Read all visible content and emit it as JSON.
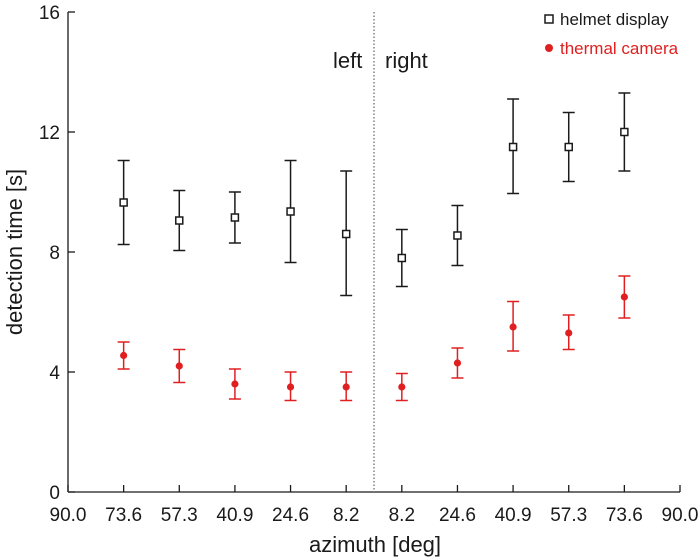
{
  "chart_data": {
    "type": "scatter",
    "title": "",
    "xlabel": "azimuth [deg]",
    "ylabel": "detection time [s]",
    "ylim": [
      0,
      16
    ],
    "yticks": [
      "0",
      "4",
      "8",
      "12",
      "16"
    ],
    "x_tick_labels": [
      "90.0",
      "73.6",
      "57.3",
      "40.9",
      "24.6",
      "8.2",
      "8.2",
      "24.6",
      "40.9",
      "57.3",
      "73.6",
      "90.0"
    ],
    "side_labels": {
      "left": "left",
      "right": "right"
    },
    "grid": false,
    "legend_position": "top-right",
    "series": [
      {
        "name": "helmet display",
        "marker": "open-square",
        "color": "#1a1a1a",
        "values": [
          9.65,
          9.05,
          9.15,
          9.35,
          8.6,
          7.8,
          8.55,
          11.5,
          11.5,
          12.0
        ],
        "err_low": [
          8.25,
          8.05,
          8.3,
          7.65,
          6.55,
          6.85,
          7.55,
          9.95,
          10.35,
          10.7
        ],
        "err_high": [
          11.05,
          10.05,
          10.0,
          11.05,
          10.7,
          8.75,
          9.55,
          13.1,
          12.65,
          13.3
        ]
      },
      {
        "name": "thermal camera",
        "marker": "filled-circle",
        "color": "#e02020",
        "values": [
          4.55,
          4.2,
          3.6,
          3.5,
          3.5,
          3.5,
          4.3,
          5.5,
          5.3,
          6.5
        ],
        "err_low": [
          4.1,
          3.65,
          3.1,
          3.05,
          3.05,
          3.05,
          3.8,
          4.7,
          4.75,
          5.8
        ],
        "err_high": [
          5.0,
          4.75,
          4.1,
          4.0,
          4.0,
          3.95,
          4.8,
          6.35,
          5.9,
          7.2
        ]
      }
    ]
  }
}
